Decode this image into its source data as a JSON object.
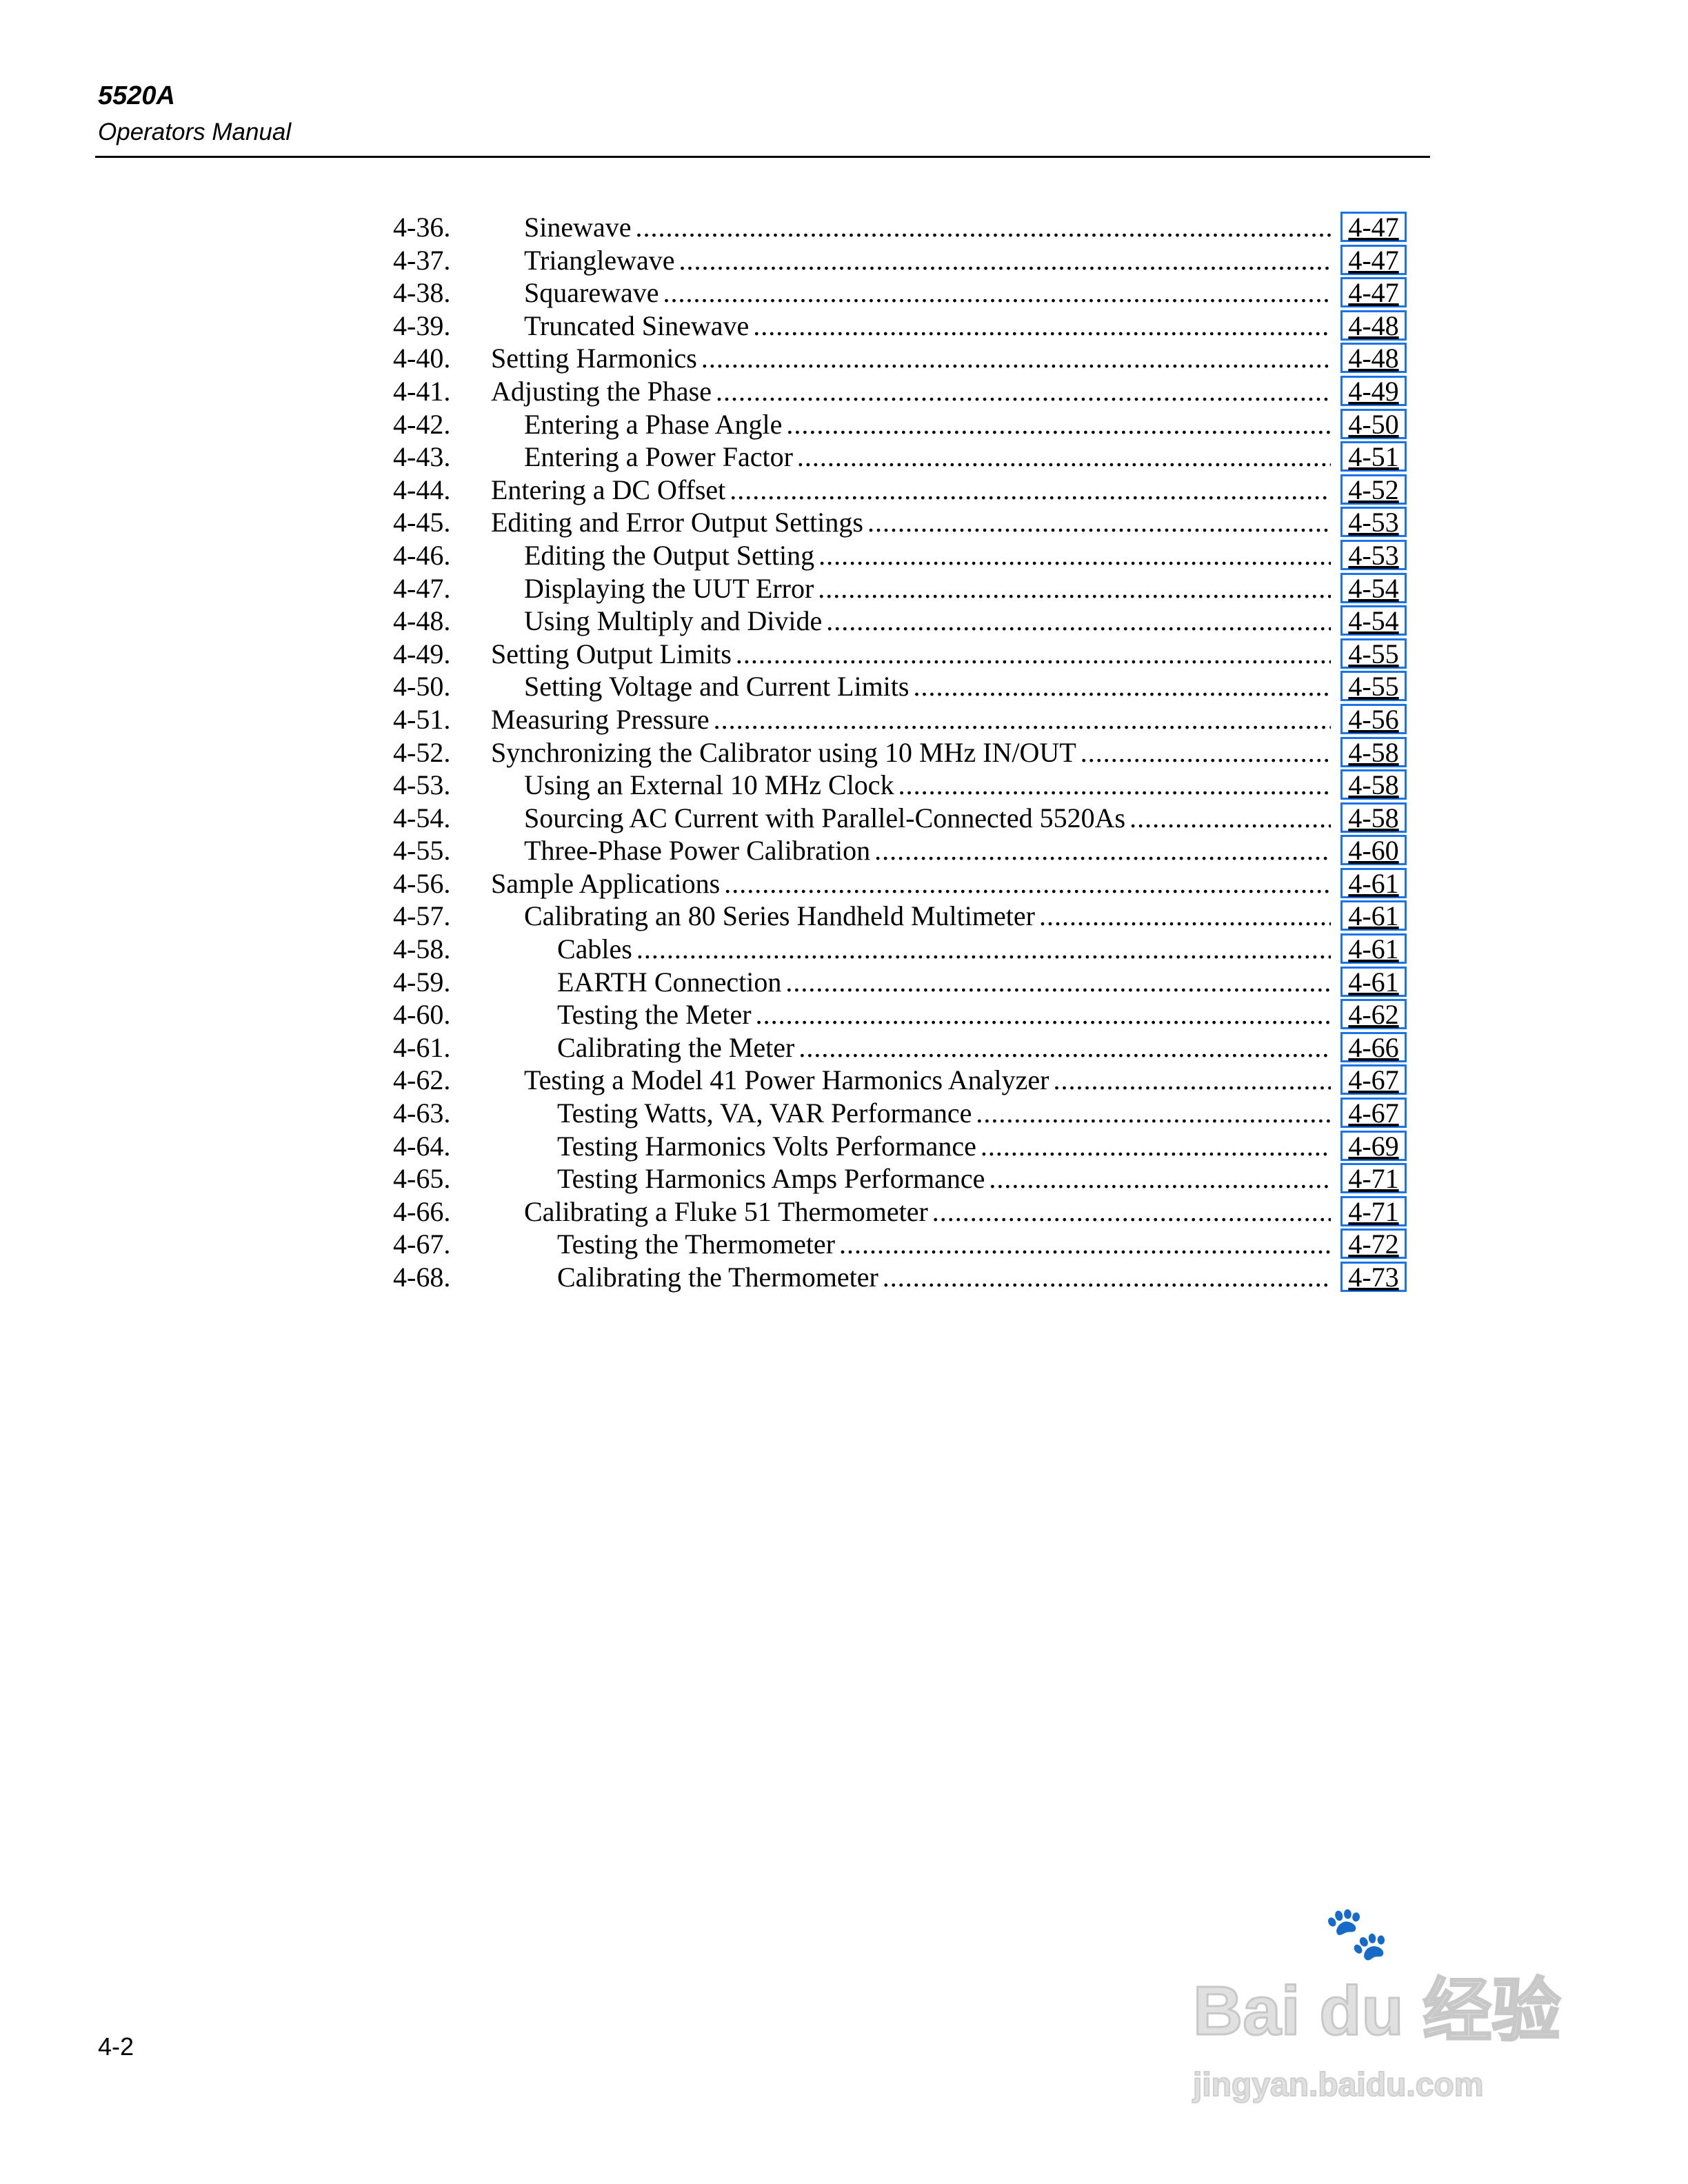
{
  "header": {
    "model": "5520A",
    "subtitle": "Operators Manual"
  },
  "toc": [
    {
      "num": "4-36.",
      "title": "Sinewave",
      "level": 2,
      "page": "4-47"
    },
    {
      "num": "4-37.",
      "title": "Trianglewave",
      "level": 2,
      "page": "4-47"
    },
    {
      "num": "4-38.",
      "title": "Squarewave",
      "level": 2,
      "page": "4-47"
    },
    {
      "num": "4-39.",
      "title": "Truncated Sinewave",
      "level": 2,
      "page": "4-48"
    },
    {
      "num": "4-40.",
      "title": "Setting Harmonics",
      "level": 1,
      "page": "4-48"
    },
    {
      "num": "4-41.",
      "title": "Adjusting the Phase",
      "level": 1,
      "page": "4-49"
    },
    {
      "num": "4-42.",
      "title": "Entering a Phase Angle",
      "level": 2,
      "page": "4-50"
    },
    {
      "num": "4-43.",
      "title": "Entering a Power Factor",
      "level": 2,
      "page": "4-51"
    },
    {
      "num": "4-44.",
      "title": "Entering a DC Offset",
      "level": 1,
      "page": "4-52"
    },
    {
      "num": "4-45.",
      "title": "Editing and Error Output Settings",
      "level": 1,
      "page": "4-53"
    },
    {
      "num": "4-46.",
      "title": "Editing the Output Setting",
      "level": 2,
      "page": "4-53"
    },
    {
      "num": "4-47.",
      "title": "Displaying the UUT Error",
      "level": 2,
      "page": "4-54"
    },
    {
      "num": "4-48.",
      "title": "Using Multiply and Divide",
      "level": 2,
      "page": "4-54"
    },
    {
      "num": "4-49.",
      "title": "Setting Output Limits",
      "level": 1,
      "page": "4-55"
    },
    {
      "num": "4-50.",
      "title": "Setting Voltage and Current Limits",
      "level": 2,
      "page": "4-55"
    },
    {
      "num": "4-51.",
      "title": "Measuring Pressure",
      "level": 1,
      "page": "4-56"
    },
    {
      "num": "4-52.",
      "title": "Synchronizing the Calibrator using 10 MHz IN/OUT",
      "level": 1,
      "page": "4-58"
    },
    {
      "num": "4-53.",
      "title": "Using an External 10 MHz Clock",
      "level": 2,
      "page": "4-58"
    },
    {
      "num": "4-54.",
      "title": "Sourcing AC Current with Parallel-Connected 5520As",
      "level": 2,
      "page": "4-58"
    },
    {
      "num": "4-55.",
      "title": "Three-Phase Power Calibration",
      "level": 2,
      "page": "4-60"
    },
    {
      "num": "4-56.",
      "title": "Sample Applications",
      "level": 1,
      "page": "4-61"
    },
    {
      "num": "4-57.",
      "title": "Calibrating an 80 Series Handheld Multimeter",
      "level": 2,
      "page": "4-61"
    },
    {
      "num": "4-58.",
      "title": "Cables",
      "level": 3,
      "page": "4-61"
    },
    {
      "num": "4-59.",
      "title": "EARTH Connection",
      "level": 3,
      "page": "4-61"
    },
    {
      "num": "4-60.",
      "title": "Testing the Meter",
      "level": 3,
      "page": "4-62"
    },
    {
      "num": "4-61.",
      "title": "Calibrating the Meter",
      "level": 3,
      "page": "4-66"
    },
    {
      "num": "4-62.",
      "title": "Testing a Model 41 Power Harmonics Analyzer",
      "level": 2,
      "page": "4-67"
    },
    {
      "num": "4-63.",
      "title": "Testing Watts, VA, VAR Performance",
      "level": 3,
      "page": "4-67"
    },
    {
      "num": "4-64.",
      "title": "Testing Harmonics Volts Performance",
      "level": 3,
      "page": "4-69"
    },
    {
      "num": "4-65.",
      "title": "Testing Harmonics Amps Performance",
      "level": 3,
      "page": "4-71"
    },
    {
      "num": "4-66.",
      "title": "Calibrating a Fluke 51 Thermometer",
      "level": 2,
      "page": "4-71"
    },
    {
      "num": "4-67.",
      "title": "Testing the Thermometer",
      "level": 3,
      "page": "4-72"
    },
    {
      "num": "4-68.",
      "title": "Calibrating the Thermometer",
      "level": 3,
      "page": "4-73"
    }
  ],
  "colors": {
    "link_box": "#1a73e8"
  },
  "footer": {
    "page_number": "4-2"
  },
  "watermark": {
    "logo": "Baidu 经验",
    "url_text": "jingyan.baidu.com"
  }
}
